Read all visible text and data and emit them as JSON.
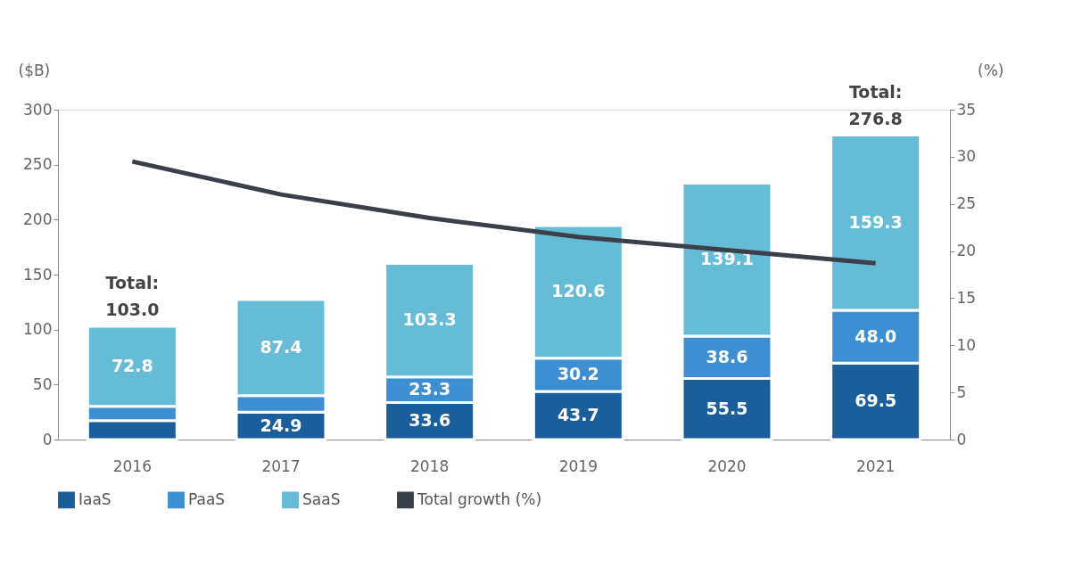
{
  "chart_data": {
    "type": "bar",
    "stacked": true,
    "xlabel": null,
    "ylabel": "($B)",
    "y2label": "(%)",
    "categories": [
      "2016",
      "2017",
      "2018",
      "2019",
      "2020",
      "2021"
    ],
    "series": [
      {
        "name": "IaaS",
        "color": "#1a5e9c",
        "values": [
          17.2,
          24.9,
          33.6,
          43.7,
          55.5,
          69.5
        ],
        "value_labels": [
          null,
          "24.9",
          "33.6",
          "43.7",
          "55.5",
          "69.5"
        ]
      },
      {
        "name": "PaaS",
        "color": "#3d8fd1",
        "values": [
          13,
          15,
          23.3,
          30.2,
          38.6,
          48.0
        ],
        "value_labels": [
          null,
          null,
          "23.3",
          "30.2",
          "38.6",
          "48.0"
        ]
      },
      {
        "name": "SaaS",
        "color": "#66bcd6",
        "values": [
          72.8,
          87.4,
          103.3,
          120.6,
          139.1,
          159.3
        ],
        "value_labels": [
          "72.8",
          "87.4",
          "103.3",
          "120.6",
          "139.1",
          "159.3"
        ]
      },
      {
        "name": "Total growth (%)",
        "type": "line",
        "axis": "y2",
        "color": "#3a3f4a",
        "values": [
          29.5,
          26.0,
          23.5,
          21.5,
          20.1,
          18.7
        ]
      }
    ],
    "totals": [
      "Total:\n103.0",
      null,
      null,
      null,
      null,
      "Total:\n276.8"
    ],
    "ylim": [
      0,
      300
    ],
    "yticks": [
      0,
      50,
      100,
      150,
      200,
      250,
      300
    ],
    "y2lim": [
      0,
      35
    ],
    "y2ticks": [
      0,
      5,
      10,
      15,
      20,
      25,
      30,
      35
    ],
    "grid": false,
    "legend": "bottom",
    "marker": "none",
    "line_style": "solid"
  }
}
